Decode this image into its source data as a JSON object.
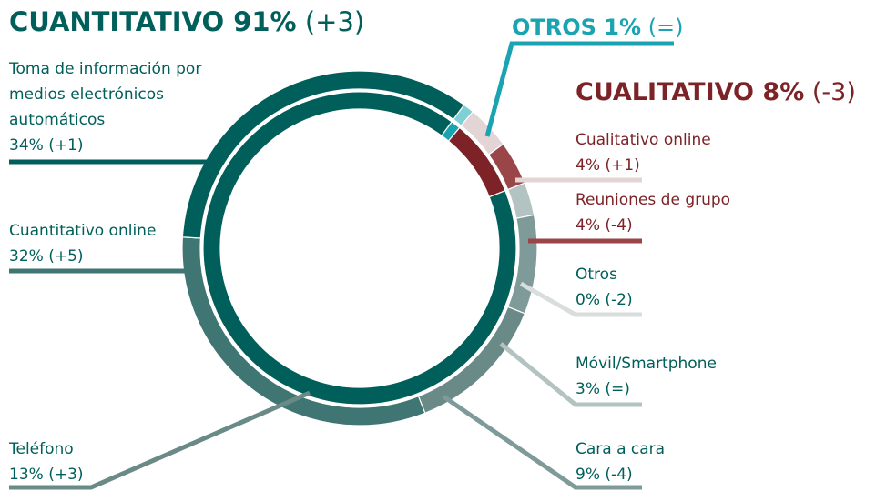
{
  "chart_data": {
    "type": "donut",
    "groups": [
      {
        "label": "OTROS 1%",
        "value": 1,
        "change": "(=)",
        "color": "#1aa3b0",
        "outer_color": "#7fd0d6",
        "items": []
      },
      {
        "label": "CUALITATIVO 8%",
        "value": 8,
        "change": "(-3)",
        "color": "#7d2327",
        "items": [
          {
            "name": "Cualitativo online",
            "value": 4,
            "value_label": "4% (+1)",
            "color": "#e3d4d6"
          },
          {
            "name": "Reuniones de grupo",
            "value": 4,
            "value_label": "4% (-4)",
            "color": "#9a4648"
          }
        ]
      },
      {
        "label": "CUANTITATIVO 91%",
        "value": 91,
        "change": "(+3)",
        "color": "#005f5a",
        "items": [
          {
            "name": "Otros",
            "value": 0,
            "value_label": "0% (-2)",
            "color": "#d9dddd"
          },
          {
            "name": "Móvil/Smartphone",
            "value": 3,
            "value_label": "3% (=)",
            "color": "#b3c3c2"
          },
          {
            "name": "Cara a cara",
            "value": 9,
            "value_label": "9% (-4)",
            "color": "#7f9b99"
          },
          {
            "name": "Teléfono",
            "value": 13,
            "value_label": "13% (+3)",
            "color": "#6a8a88"
          },
          {
            "name": "Cuantitativo online",
            "value": 32,
            "value_label": "32% (+5)",
            "color": "#3f7572"
          },
          {
            "name": "Toma de información por medios electrónicos automáticos",
            "value": 34,
            "value_label": "34% (+1)",
            "color": "#005f5a"
          }
        ]
      }
    ]
  }
}
